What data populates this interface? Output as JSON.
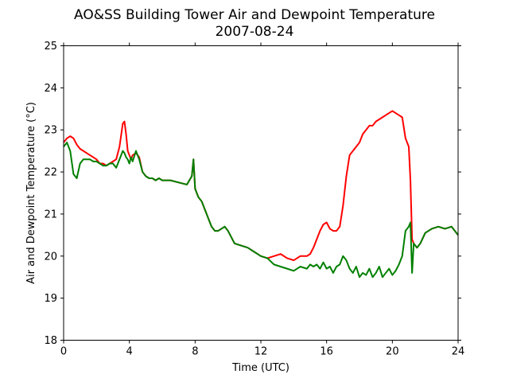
{
  "chart_data": {
    "type": "line",
    "title": "AO&SS Building Tower Air and Dewpoint Temperature",
    "subtitle": "2007-08-24",
    "xlabel": "Time (UTC)",
    "ylabel": "Air and Dewpoint Temperature (°C)",
    "xlim": [
      0,
      24
    ],
    "ylim": [
      18,
      25
    ],
    "xticks": [
      0,
      4,
      8,
      12,
      16,
      20,
      24
    ],
    "yticks": [
      18,
      19,
      20,
      21,
      22,
      23,
      24,
      25
    ],
    "grid": false,
    "legend": "none",
    "colors": {
      "air": "#ff0000",
      "dewpoint": "#008000",
      "axes": "#000000",
      "background": "#ffffff"
    },
    "series": [
      {
        "key": "air",
        "x": [
          0,
          0.2,
          0.4,
          0.6,
          0.8,
          1.0,
          1.2,
          1.4,
          1.6,
          1.8,
          2.0,
          2.2,
          2.4,
          2.6,
          2.8,
          3.0,
          3.2,
          3.4,
          3.6,
          3.7,
          3.8,
          3.9,
          4.0,
          4.1,
          4.2,
          4.4,
          4.6,
          4.8,
          5.0,
          5.2,
          5.4,
          5.6,
          5.8,
          6.0,
          6.5,
          7.0,
          7.5,
          7.8,
          7.9,
          8.0,
          8.2,
          8.4,
          8.6,
          8.8,
          9.0,
          9.2,
          9.4,
          9.6,
          9.8,
          10.0,
          10.4,
          10.8,
          11.2,
          11.6,
          12.0,
          12.4,
          12.8,
          13.2,
          13.6,
          14.0,
          14.4,
          14.8,
          15.0,
          15.2,
          15.4,
          15.6,
          15.8,
          16.0,
          16.2,
          16.4,
          16.6,
          16.8,
          17.0,
          17.2,
          17.4,
          17.6,
          17.8,
          18.0,
          18.2,
          18.4,
          18.6,
          18.8,
          19.0,
          19.2,
          19.4,
          19.6,
          19.8,
          20.0,
          20.2,
          20.4,
          20.6,
          20.8,
          21.0,
          21.1,
          21.2,
          21.3,
          21.5,
          21.7,
          22.0,
          22.4,
          22.8,
          23.2,
          23.6,
          24.0
        ],
        "y": [
          22.7,
          22.8,
          22.85,
          22.8,
          22.65,
          22.55,
          22.5,
          22.45,
          22.4,
          22.35,
          22.3,
          22.2,
          22.2,
          22.15,
          22.2,
          22.25,
          22.3,
          22.6,
          23.15,
          23.2,
          22.9,
          22.5,
          22.4,
          22.3,
          22.4,
          22.45,
          22.35,
          22.0,
          21.9,
          21.85,
          21.85,
          21.8,
          21.85,
          21.8,
          21.8,
          21.75,
          21.7,
          21.9,
          22.3,
          21.6,
          21.4,
          21.3,
          21.1,
          20.9,
          20.7,
          20.6,
          20.6,
          20.65,
          20.7,
          20.6,
          20.3,
          20.25,
          20.2,
          20.1,
          20.0,
          19.95,
          20.0,
          20.05,
          19.95,
          19.9,
          20.0,
          20.0,
          20.05,
          20.2,
          20.4,
          20.6,
          20.75,
          20.8,
          20.65,
          20.6,
          20.6,
          20.7,
          21.2,
          21.9,
          22.4,
          22.5,
          22.6,
          22.7,
          22.9,
          23.0,
          23.1,
          23.1,
          23.2,
          23.25,
          23.3,
          23.35,
          23.4,
          23.45,
          23.4,
          23.35,
          23.3,
          22.8,
          22.6,
          21.8,
          20.4,
          20.3,
          20.2,
          20.3,
          20.55,
          20.65,
          20.7,
          20.65,
          20.7,
          20.5
        ]
      },
      {
        "key": "dewpoint",
        "x": [
          0,
          0.2,
          0.4,
          0.6,
          0.8,
          1.0,
          1.2,
          1.4,
          1.6,
          1.8,
          2.0,
          2.2,
          2.4,
          2.6,
          2.8,
          3.0,
          3.2,
          3.4,
          3.6,
          3.7,
          3.8,
          3.9,
          4.0,
          4.1,
          4.2,
          4.4,
          4.6,
          4.8,
          5.0,
          5.2,
          5.4,
          5.6,
          5.8,
          6.0,
          6.5,
          7.0,
          7.5,
          7.8,
          7.9,
          8.0,
          8.2,
          8.4,
          8.6,
          8.8,
          9.0,
          9.2,
          9.4,
          9.6,
          9.8,
          10.0,
          10.4,
          10.8,
          11.2,
          11.6,
          12.0,
          12.4,
          12.8,
          13.2,
          13.6,
          14.0,
          14.4,
          14.8,
          15.0,
          15.2,
          15.4,
          15.6,
          15.8,
          16.0,
          16.2,
          16.4,
          16.6,
          16.8,
          17.0,
          17.2,
          17.4,
          17.6,
          17.8,
          18.0,
          18.2,
          18.4,
          18.6,
          18.8,
          19.0,
          19.2,
          19.4,
          19.6,
          19.8,
          20.0,
          20.2,
          20.4,
          20.6,
          20.8,
          21.0,
          21.1,
          21.2,
          21.3,
          21.5,
          21.7,
          22.0,
          22.4,
          22.8,
          23.2,
          23.6,
          24.0
        ],
        "y": [
          22.6,
          22.7,
          22.5,
          21.95,
          21.85,
          22.2,
          22.3,
          22.3,
          22.3,
          22.25,
          22.25,
          22.2,
          22.15,
          22.15,
          22.2,
          22.2,
          22.1,
          22.3,
          22.5,
          22.45,
          22.35,
          22.3,
          22.2,
          22.35,
          22.25,
          22.5,
          22.3,
          22.0,
          21.9,
          21.85,
          21.85,
          21.8,
          21.85,
          21.8,
          21.8,
          21.75,
          21.7,
          21.9,
          22.3,
          21.6,
          21.4,
          21.3,
          21.1,
          20.9,
          20.7,
          20.6,
          20.6,
          20.65,
          20.7,
          20.6,
          20.3,
          20.25,
          20.2,
          20.1,
          20.0,
          19.95,
          19.8,
          19.75,
          19.7,
          19.65,
          19.75,
          19.7,
          19.8,
          19.75,
          19.8,
          19.7,
          19.85,
          19.7,
          19.75,
          19.6,
          19.75,
          19.8,
          20.0,
          19.9,
          19.7,
          19.6,
          19.75,
          19.5,
          19.6,
          19.55,
          19.7,
          19.5,
          19.6,
          19.75,
          19.5,
          19.6,
          19.7,
          19.55,
          19.65,
          19.8,
          20.0,
          20.6,
          20.7,
          20.8,
          19.6,
          20.3,
          20.2,
          20.3,
          20.55,
          20.65,
          20.7,
          20.65,
          20.7,
          20.5
        ]
      }
    ]
  }
}
